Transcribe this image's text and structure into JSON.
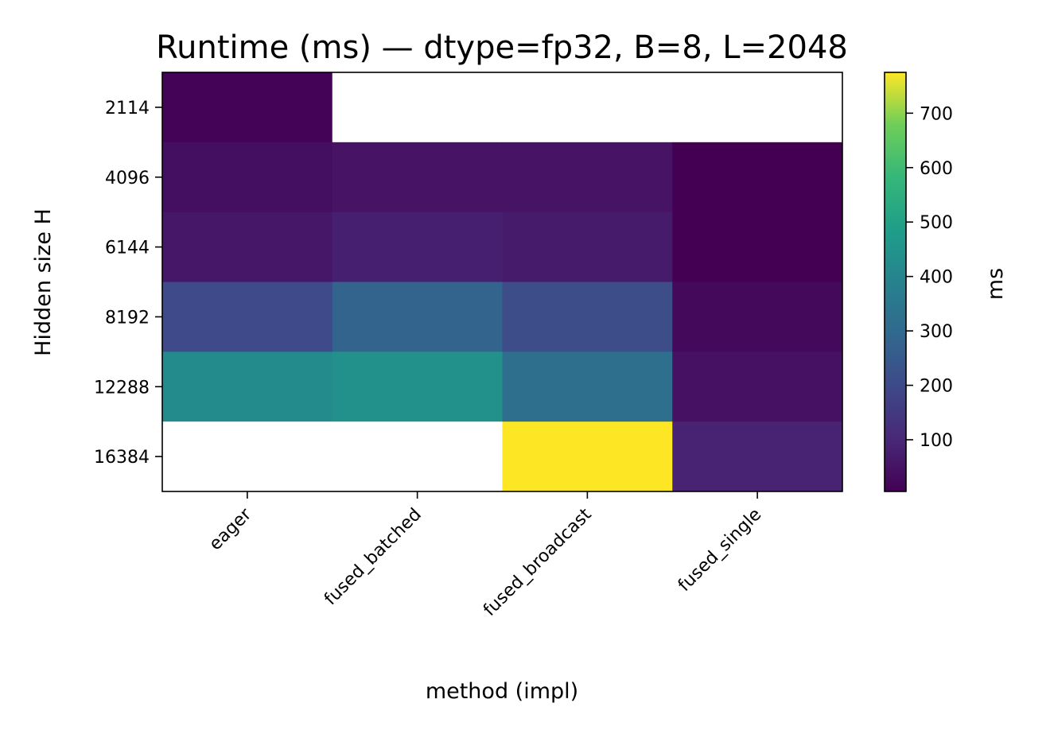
{
  "chart_data": {
    "type": "heatmap",
    "title": "Runtime (ms) — dtype=fp32, B=8, L=2048",
    "xlabel": "method (impl)",
    "ylabel": "Hidden size H",
    "x_categories": [
      "eager",
      "fused_batched",
      "fused_broadcast",
      "fused_single"
    ],
    "y_categories": [
      "2114",
      "4096",
      "6144",
      "8192",
      "12288",
      "16384"
    ],
    "values": [
      [
        10,
        null,
        null,
        null
      ],
      [
        40,
        50,
        50,
        5
      ],
      [
        60,
        80,
        70,
        5
      ],
      [
        200,
        280,
        210,
        25
      ],
      [
        420,
        440,
        320,
        45
      ],
      [
        null,
        null,
        775,
        90
      ]
    ],
    "colorbar": {
      "label": "ms",
      "min": 5,
      "max": 775,
      "ticks": [
        100,
        200,
        300,
        400,
        500,
        600,
        700
      ],
      "colormap": "viridis"
    },
    "missing_color": "#ffffff"
  }
}
